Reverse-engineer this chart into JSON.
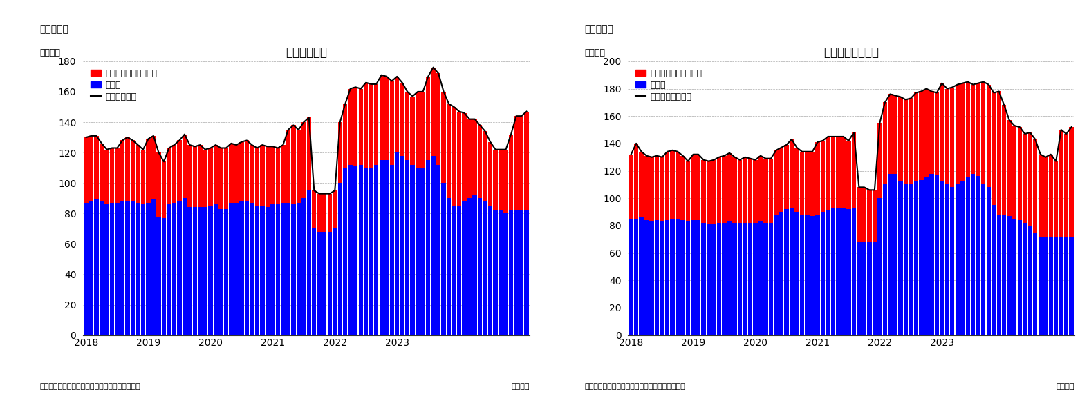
{
  "chart1": {
    "title": "住宅着工件数",
    "fig_label": "（図表１）",
    "ylabel": "（万件）",
    "xlabel_note": "（月次）",
    "source": "（資料）センサス局よりニッセイ基礎研究所作成",
    "ylim": [
      0,
      180
    ],
    "yticks": [
      0,
      20,
      40,
      60,
      80,
      100,
      120,
      140,
      160,
      180
    ],
    "legend_line": "住宅着工件数",
    "legend_red": "集合住宅（二戸以上）",
    "legend_blue": "戸建て",
    "blue": [
      87,
      88,
      89,
      88,
      86,
      87,
      87,
      88,
      88,
      88,
      87,
      86,
      87,
      89,
      78,
      77,
      86,
      87,
      88,
      90,
      84,
      84,
      84,
      84,
      85,
      86,
      83,
      83,
      87,
      87,
      88,
      88,
      87,
      85,
      85,
      84,
      86,
      86,
      87,
      87,
      86,
      87,
      90,
      95,
      70,
      68,
      68,
      68,
      70,
      100,
      110,
      112,
      111,
      112,
      110,
      110,
      112,
      115,
      115,
      112,
      120,
      118,
      115,
      112,
      110,
      110,
      115,
      118,
      112,
      100,
      90,
      85,
      85,
      88,
      90,
      92,
      90,
      88,
      85,
      82,
      82,
      80,
      82,
      82,
      82,
      82
    ],
    "red": [
      43,
      43,
      42,
      38,
      36,
      36,
      36,
      40,
      42,
      40,
      38,
      36,
      42,
      42,
      42,
      37,
      37,
      38,
      40,
      42,
      41,
      40,
      41,
      38,
      38,
      39,
      40,
      40,
      39,
      38,
      39,
      40,
      38,
      38,
      40,
      40,
      38,
      37,
      38,
      48,
      52,
      48,
      50,
      48,
      25,
      25,
      25,
      25,
      25,
      40,
      42,
      50,
      52,
      50,
      56,
      55,
      53,
      56,
      55,
      55,
      50,
      48,
      45,
      45,
      50,
      50,
      55,
      58,
      60,
      60,
      62,
      65,
      62,
      58,
      52,
      50,
      48,
      46,
      42,
      40,
      40,
      42,
      50,
      62,
      62,
      65
    ],
    "xtick_positions": [
      0,
      12,
      24,
      36,
      48,
      60,
      72
    ],
    "xtick_labels": [
      "2018",
      "2019",
      "2020",
      "2021",
      "2022",
      "2023",
      ""
    ]
  },
  "chart2": {
    "title": "住宅着工許可件数",
    "fig_label": "（図表２）",
    "ylabel": "（万件）",
    "xlabel_note": "（月次）",
    "source": "（資料）センサス局よりニッセイ基礎研究所作成",
    "ylim": [
      0,
      200
    ],
    "yticks": [
      0,
      20,
      40,
      60,
      80,
      100,
      120,
      140,
      160,
      180,
      200
    ],
    "legend_line": "住宅建築許可件数",
    "legend_red": "集合住宅（二戸以上）",
    "legend_blue": "戸建て",
    "blue": [
      85,
      85,
      86,
      84,
      83,
      84,
      83,
      84,
      85,
      85,
      84,
      83,
      84,
      84,
      82,
      81,
      81,
      82,
      82,
      83,
      82,
      82,
      82,
      82,
      82,
      83,
      82,
      82,
      88,
      90,
      92,
      93,
      90,
      88,
      88,
      87,
      88,
      90,
      91,
      93,
      93,
      93,
      92,
      93,
      68,
      68,
      68,
      68,
      100,
      110,
      118,
      118,
      112,
      110,
      110,
      112,
      113,
      115,
      118,
      117,
      112,
      110,
      108,
      110,
      112,
      115,
      118,
      116,
      110,
      108,
      95,
      88,
      88,
      87,
      85,
      84,
      82,
      80,
      75,
      72,
      72,
      72,
      72,
      72,
      72,
      72
    ],
    "red": [
      47,
      55,
      48,
      47,
      47,
      47,
      47,
      50,
      50,
      49,
      47,
      44,
      48,
      48,
      46,
      46,
      47,
      48,
      49,
      50,
      48,
      46,
      48,
      47,
      46,
      48,
      47,
      47,
      47,
      47,
      47,
      50,
      47,
      46,
      46,
      47,
      53,
      52,
      54,
      52,
      52,
      52,
      50,
      55,
      40,
      40,
      38,
      38,
      55,
      60,
      58,
      57,
      62,
      62,
      63,
      65,
      65,
      65,
      60,
      60,
      72,
      70,
      73,
      73,
      72,
      70,
      65,
      68,
      75,
      75,
      82,
      90,
      80,
      70,
      68,
      68,
      65,
      68,
      68,
      60,
      58,
      60,
      55,
      78,
      75,
      80
    ],
    "xtick_positions": [
      0,
      12,
      24,
      36,
      48,
      60,
      72
    ],
    "xtick_labels": [
      "2018",
      "2019",
      "2020",
      "2021",
      "2022",
      "2023",
      ""
    ]
  },
  "bar_color_blue": "#0000FF",
  "bar_color_red": "#FF0000",
  "line_color": "#000000",
  "background_color": "#FFFFFF",
  "grid_color": "#AAAAAA"
}
